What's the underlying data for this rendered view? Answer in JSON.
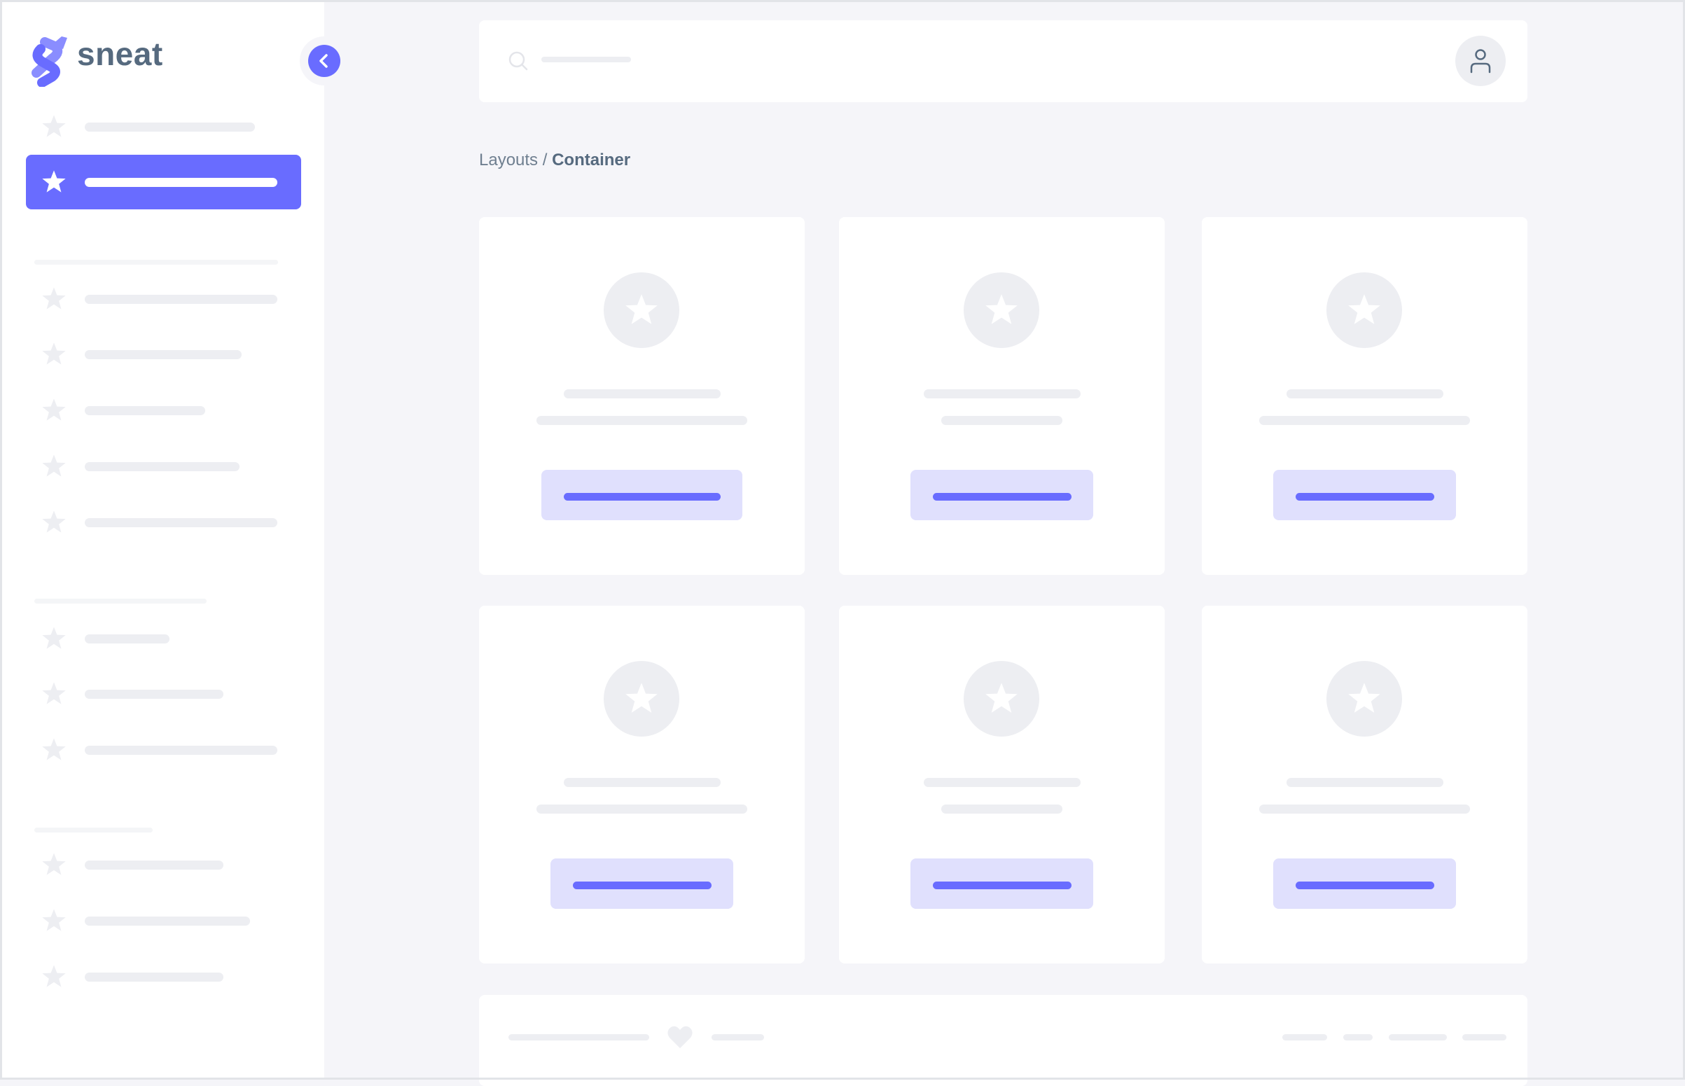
{
  "app": {
    "logo_text": "sneat"
  },
  "colors": {
    "primary": "#696cff",
    "primary_light": "#e0e0fd",
    "placeholder": "#edeef2",
    "text": "#566a7f",
    "background": "#f5f5f9"
  },
  "icons": {
    "logo": "sneat-logo-icon",
    "toggle": "chevron-left-icon",
    "nav_item": "star-icon",
    "search": "search-icon",
    "avatar": "user-icon",
    "footer": "heart-icon"
  },
  "breadcrumb": {
    "parent": "Layouts",
    "separator": " / ",
    "current": "Container"
  }
}
